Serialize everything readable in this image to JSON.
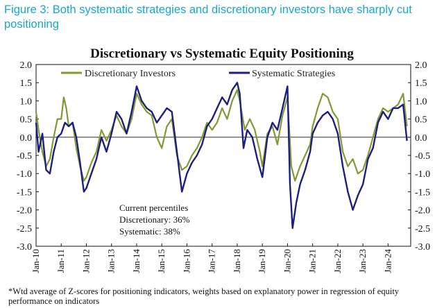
{
  "figure_caption": "Figure 3: Both systematic strategies and discretionary investors have sharply cut positioning",
  "footnote": "*Wtd average of Z-scores for positioning indicators, weights based on explanatory power in regression of equity performance on indicators",
  "colors": {
    "caption": "#19a7c9",
    "discretionary": "#7f9a34",
    "systematic": "#1a1f80"
  },
  "chart_data": {
    "type": "line",
    "title": "Discretionary  vs Systematic Equity Positioning",
    "xlabel": "",
    "ylabel": "",
    "xlim": [
      2010.0,
      2024.9
    ],
    "ylim": [
      -3.0,
      2.0
    ],
    "y_ticks": [
      "2.0",
      "1.5",
      "1.0",
      "0.5",
      "0.0",
      "-0.5",
      "-1.0",
      "-1.5",
      "-2.0",
      "-2.5",
      "-3.0"
    ],
    "x_ticks": [
      "Jan-10",
      "Jan-11",
      "Jan-12",
      "Jan-13",
      "Jan-14",
      "Jan-15",
      "Jan-16",
      "Jan-17",
      "Jan-18",
      "Jan-19",
      "Jan-20",
      "Jan-21",
      "Jan-22",
      "Jan-23",
      "Jan-24"
    ],
    "legend": "top",
    "grid": false,
    "annotation": [
      "Current percentiles",
      "Discretionary: 36%",
      "Systematic: 38%"
    ],
    "series": [
      {
        "name": "Discretionary Investors",
        "color": "#7f9a34",
        "x": [
          2010.0,
          2010.1,
          2010.25,
          2010.4,
          2010.55,
          2010.7,
          2010.85,
          2011.0,
          2011.1,
          2011.2,
          2011.3,
          2011.45,
          2011.6,
          2011.75,
          2011.9,
          2012.0,
          2012.2,
          2012.4,
          2012.6,
          2012.8,
          2013.0,
          2013.2,
          2013.4,
          2013.6,
          2013.8,
          2014.0,
          2014.2,
          2014.4,
          2014.6,
          2014.8,
          2015.0,
          2015.2,
          2015.4,
          2015.6,
          2015.8,
          2016.0,
          2016.2,
          2016.4,
          2016.6,
          2016.8,
          2017.0,
          2017.2,
          2017.4,
          2017.6,
          2017.8,
          2018.0,
          2018.1,
          2018.3,
          2018.5,
          2018.7,
          2018.9,
          2019.0,
          2019.2,
          2019.4,
          2019.6,
          2019.8,
          2020.0,
          2020.15,
          2020.3,
          2020.5,
          2020.7,
          2020.9,
          2021.0,
          2021.2,
          2021.4,
          2021.6,
          2021.8,
          2022.0,
          2022.2,
          2022.4,
          2022.6,
          2022.8,
          2023.0,
          2023.2,
          2023.4,
          2023.6,
          2023.8,
          2024.0,
          2024.2,
          2024.4,
          2024.6,
          2024.75
        ],
        "values": [
          0.7,
          0.2,
          -0.4,
          -0.8,
          -0.6,
          0.0,
          0.5,
          0.5,
          1.1,
          0.8,
          0.3,
          0.4,
          -0.3,
          -0.8,
          -1.2,
          -1.1,
          -0.7,
          -0.4,
          0.2,
          -0.1,
          0.2,
          0.6,
          0.3,
          0.1,
          0.5,
          1.2,
          0.9,
          0.7,
          0.6,
          0.0,
          -0.3,
          0.3,
          0.5,
          -0.5,
          -0.9,
          -0.8,
          -0.5,
          -0.3,
          0.0,
          0.4,
          0.2,
          0.4,
          0.8,
          0.5,
          1.0,
          1.3,
          1.0,
          0.2,
          0.5,
          0.2,
          -0.4,
          -0.8,
          0.1,
          0.3,
          -0.2,
          0.6,
          1.1,
          -0.8,
          -1.2,
          -0.8,
          -0.5,
          -0.2,
          0.3,
          0.8,
          1.2,
          1.1,
          0.7,
          0.5,
          -0.4,
          -0.8,
          -0.6,
          -1.0,
          -0.9,
          -0.5,
          0.0,
          0.5,
          0.8,
          0.7,
          0.8,
          0.9,
          1.2,
          0.3
        ]
      },
      {
        "name": "Systematic Strategies",
        "color": "#1a1f80",
        "x": [
          2010.0,
          2010.1,
          2010.25,
          2010.4,
          2010.55,
          2010.7,
          2010.85,
          2011.0,
          2011.15,
          2011.3,
          2011.45,
          2011.6,
          2011.75,
          2011.9,
          2012.0,
          2012.2,
          2012.4,
          2012.6,
          2012.8,
          2013.0,
          2013.2,
          2013.4,
          2013.6,
          2013.8,
          2014.0,
          2014.2,
          2014.4,
          2014.6,
          2014.8,
          2015.0,
          2015.2,
          2015.4,
          2015.6,
          2015.8,
          2016.0,
          2016.2,
          2016.4,
          2016.6,
          2016.8,
          2017.0,
          2017.2,
          2017.4,
          2017.6,
          2017.8,
          2018.0,
          2018.1,
          2018.25,
          2018.4,
          2018.6,
          2018.8,
          2019.0,
          2019.2,
          2019.4,
          2019.6,
          2019.8,
          2020.0,
          2020.1,
          2020.2,
          2020.35,
          2020.5,
          2020.7,
          2020.9,
          2021.0,
          2021.2,
          2021.4,
          2021.6,
          2021.8,
          2022.0,
          2022.2,
          2022.4,
          2022.6,
          2022.8,
          2023.0,
          2023.2,
          2023.4,
          2023.6,
          2023.8,
          2024.0,
          2024.2,
          2024.4,
          2024.6,
          2024.75
        ],
        "values": [
          0.4,
          -0.4,
          0.1,
          -0.9,
          -1.0,
          -0.4,
          0.0,
          0.1,
          0.4,
          0.3,
          0.4,
          0.0,
          -0.7,
          -1.5,
          -1.4,
          -1.0,
          -0.6,
          0.0,
          -0.4,
          0.1,
          0.7,
          0.5,
          0.1,
          0.7,
          1.4,
          1.0,
          0.8,
          0.7,
          0.4,
          0.6,
          0.8,
          0.7,
          -0.4,
          -1.5,
          -1.0,
          -0.7,
          -0.5,
          -0.2,
          0.3,
          0.5,
          0.8,
          1.1,
          0.9,
          1.3,
          1.5,
          1.2,
          -0.3,
          0.2,
          0.0,
          -0.6,
          -1.1,
          0.0,
          0.4,
          0.2,
          0.8,
          1.4,
          -1.3,
          -2.5,
          -1.8,
          -1.3,
          -0.9,
          -0.4,
          0.1,
          0.4,
          0.6,
          0.7,
          0.5,
          0.1,
          -0.8,
          -1.5,
          -2.0,
          -1.6,
          -1.3,
          -0.6,
          -0.3,
          0.4,
          0.7,
          0.5,
          0.8,
          0.8,
          0.9,
          -0.1
        ]
      }
    ]
  }
}
